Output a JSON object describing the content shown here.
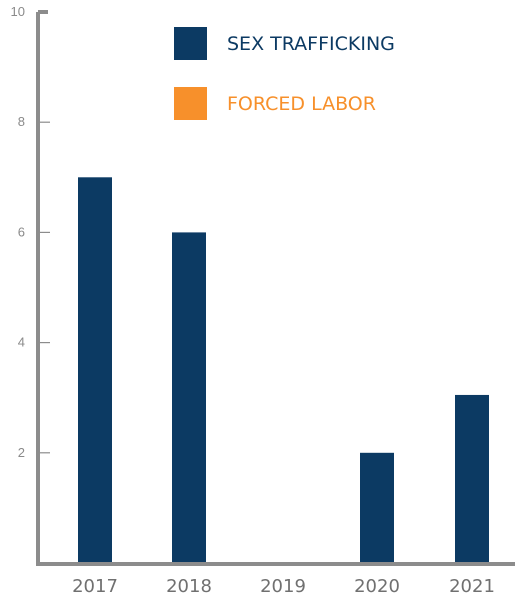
{
  "chart_data": {
    "type": "bar",
    "categories": [
      "2017",
      "2018",
      "2019",
      "2020",
      "2021"
    ],
    "series": [
      {
        "name": "SEX TRAFFICKING",
        "values": [
          7,
          6,
          0,
          2,
          3.05
        ],
        "color": "#0c3a63"
      },
      {
        "name": "FORCED LABOR",
        "values": [
          0,
          0,
          0,
          0,
          0
        ],
        "color": "#f7902b"
      }
    ],
    "ylim": [
      0,
      10
    ],
    "yticks": [
      "2",
      "4",
      "6",
      "8",
      "10"
    ],
    "title": "",
    "xlabel": "",
    "ylabel": "",
    "legend_position": "top-right",
    "axis_color": "#8c8c8c"
  }
}
